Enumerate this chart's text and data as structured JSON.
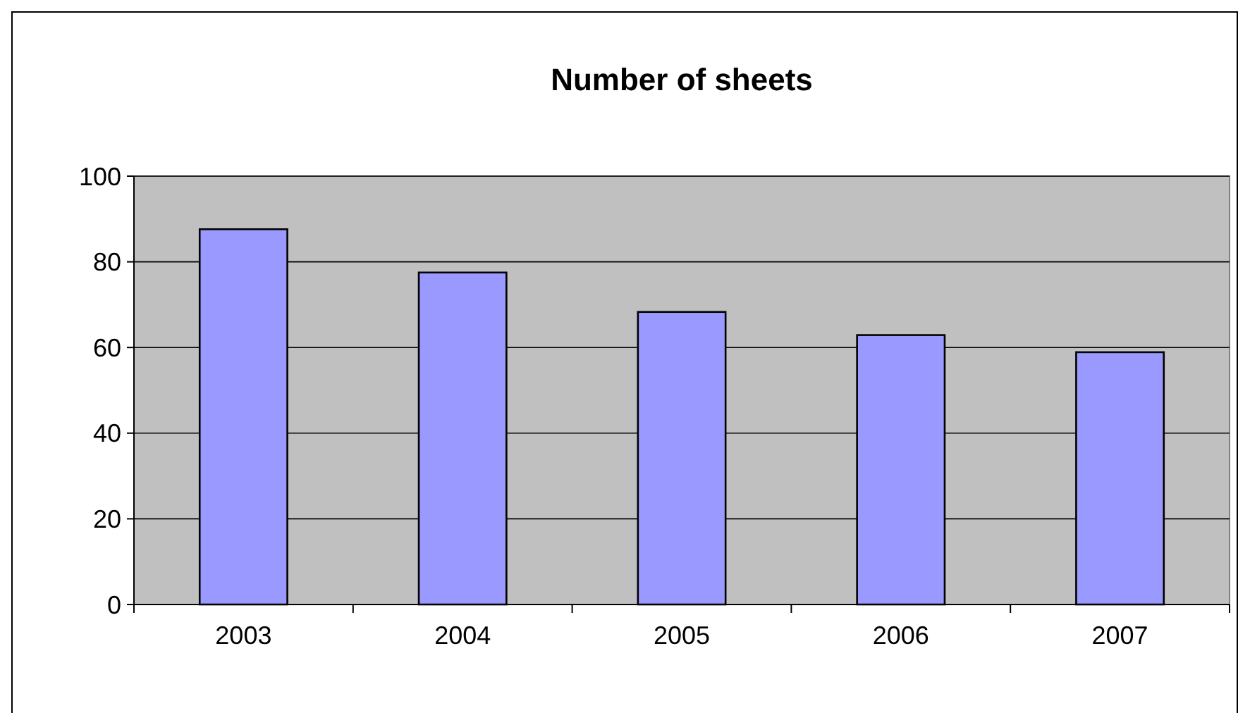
{
  "chart_data": {
    "type": "bar",
    "title": "Number of sheets",
    "categories": [
      "2003",
      "2004",
      "2005",
      "2006",
      "2007"
    ],
    "values": [
      87.6,
      77.5,
      68.3,
      62.9,
      58.9
    ],
    "color": "#9999ff",
    "ylim": [
      0,
      100
    ],
    "yticks": [
      0,
      20,
      40,
      60,
      80,
      100
    ],
    "grid": "y"
  }
}
